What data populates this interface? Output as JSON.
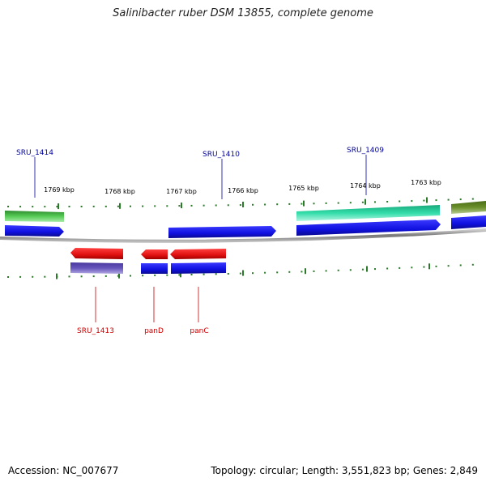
{
  "title": "Salinibacter ruber DSM 13855, complete genome",
  "accession": "Accession: NC_007677",
  "topology": "Topology: circular; Length: 3,551,823 bp; Genes: 2,849",
  "ticks": [
    "1769 kbp",
    "1768 kbp",
    "1767 kbp",
    "1766 kbp",
    "1765 kbp",
    "1764 kbp",
    "1763 kbp"
  ],
  "gene_labels_top": [
    "SRU_1414",
    "SRU_1410",
    "SRU_1409"
  ],
  "gene_labels_bottom": [
    "SRU_1413",
    "panD",
    "panC"
  ],
  "colors": {
    "gene_blue": "#1010e0",
    "gene_red": "#e01010",
    "green": "#44bb44",
    "teal": "#33ddaa",
    "olive": "#6a8f2a",
    "purple": "#6655bb",
    "tick": "#2a7a2a",
    "backbone": "#888888"
  }
}
